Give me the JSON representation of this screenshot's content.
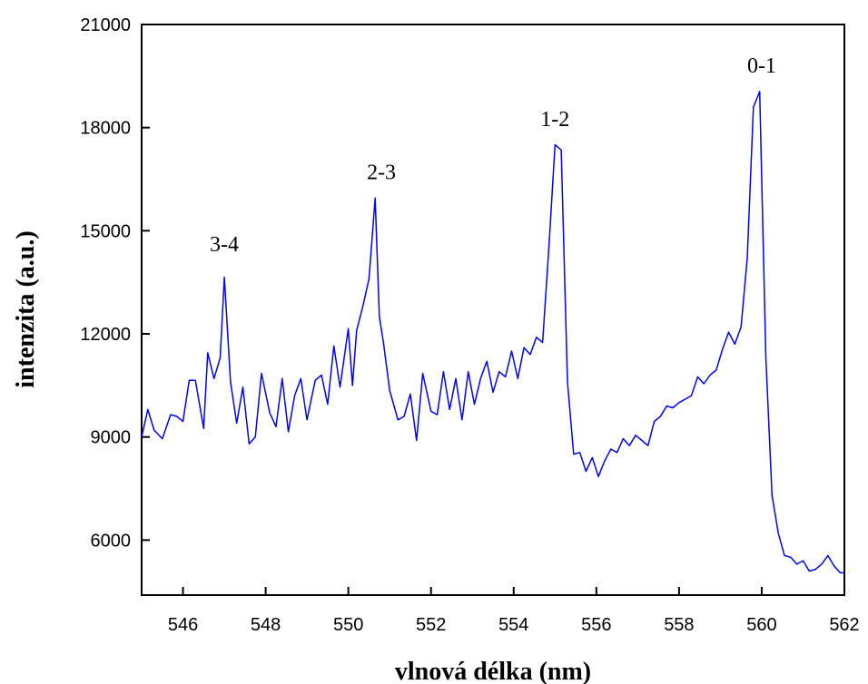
{
  "chart_data": {
    "type": "line",
    "title": "",
    "xlabel": "vlnová délka (nm)",
    "ylabel": "intenzita (a.u.)",
    "xlim": [
      545,
      562
    ],
    "ylim": [
      4400,
      21000
    ],
    "xticks": [
      546,
      548,
      550,
      552,
      554,
      556,
      558,
      560,
      562
    ],
    "yticks": [
      6000,
      9000,
      12000,
      15000,
      18000,
      21000
    ],
    "grid": false,
    "legend": "none",
    "line_color": "#0000ff",
    "series": [
      {
        "x": [
          545.0,
          545.15,
          545.3,
          545.5,
          545.7,
          545.85,
          546.0,
          546.15,
          546.3,
          546.5,
          546.6,
          546.75,
          546.9,
          547.0,
          547.15,
          547.3,
          547.45,
          547.6,
          547.75,
          547.9,
          548.1,
          548.25,
          548.4,
          548.55,
          548.7,
          548.85,
          549.0,
          549.2,
          549.35,
          549.5,
          549.65,
          549.8,
          550.0,
          550.1,
          550.2,
          550.35,
          550.5,
          550.65,
          550.75,
          550.85,
          551.0,
          551.2,
          551.35,
          551.5,
          551.65,
          551.8,
          552.0,
          552.15,
          552.3,
          552.45,
          552.6,
          552.75,
          552.9,
          553.05,
          553.2,
          553.35,
          553.5,
          553.65,
          553.8,
          553.95,
          554.1,
          554.25,
          554.4,
          554.55,
          554.7,
          554.85,
          555.0,
          555.15,
          555.3,
          555.45,
          555.6,
          555.75,
          555.9,
          556.05,
          556.2,
          556.35,
          556.5,
          556.65,
          556.8,
          556.95,
          557.1,
          557.25,
          557.4,
          557.55,
          557.7,
          557.85,
          558.0,
          558.15,
          558.3,
          558.45,
          558.6,
          558.75,
          558.9,
          559.05,
          559.2,
          559.35,
          559.5,
          559.65,
          559.8,
          559.95,
          560.1,
          560.25,
          560.4,
          560.55,
          560.7,
          560.85,
          561.0,
          561.15,
          561.3,
          561.45,
          561.6,
          561.75,
          561.9,
          562.0
        ],
        "y": [
          9000,
          9800,
          9200,
          8950,
          9650,
          9600,
          9450,
          10650,
          10650,
          9250,
          11450,
          10700,
          11300,
          13650,
          10600,
          9400,
          10450,
          8800,
          9000,
          10850,
          9700,
          9300,
          10700,
          9150,
          10200,
          10700,
          9500,
          10650,
          10800,
          9950,
          11650,
          10450,
          12150,
          10500,
          12100,
          12800,
          13600,
          15950,
          12500,
          11750,
          10350,
          9500,
          9600,
          10250,
          8900,
          10850,
          9750,
          9650,
          10900,
          9800,
          10700,
          9500,
          10900,
          9950,
          10700,
          11200,
          10300,
          10900,
          10750,
          11500,
          10700,
          11600,
          11400,
          11900,
          11750,
          14500,
          17500,
          17350,
          10600,
          8500,
          8550,
          8000,
          8400,
          7850,
          8300,
          8650,
          8550,
          8950,
          8750,
          9050,
          8900,
          8750,
          9450,
          9600,
          9900,
          9850,
          10000,
          10100,
          10200,
          10750,
          10550,
          10800,
          10950,
          11550,
          12050,
          11700,
          12200,
          14200,
          18600,
          19050,
          11300,
          7300,
          6200,
          5550,
          5500,
          5300,
          5400,
          5100,
          5150,
          5300,
          5550,
          5250,
          5050,
          5050
        ]
      }
    ],
    "annotations": [
      {
        "text": "3-4",
        "x": 547.0,
        "y": 14400
      },
      {
        "text": "2-3",
        "x": 550.8,
        "y": 16500
      },
      {
        "text": "1-2",
        "x": 555.0,
        "y": 18050
      },
      {
        "text": "0-1",
        "x": 560.0,
        "y": 19600
      }
    ]
  }
}
